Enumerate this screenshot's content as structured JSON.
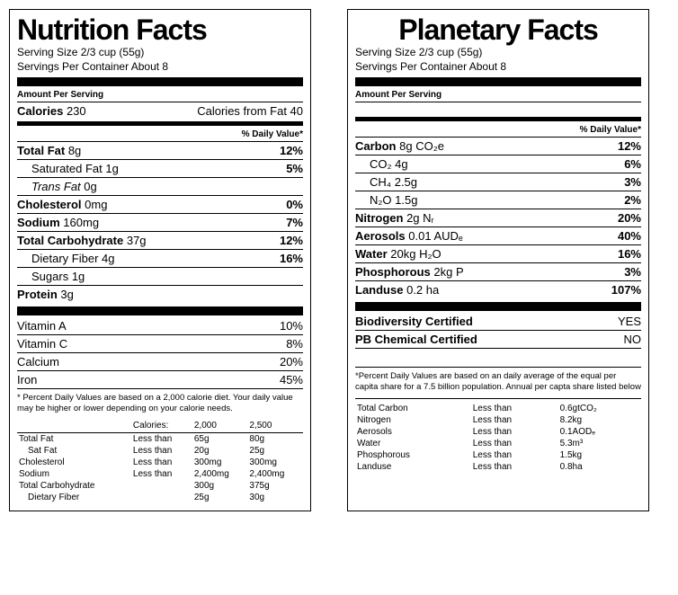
{
  "nutrition": {
    "title": "Nutrition Facts",
    "serving_size": "Serving Size 2/3 cup (55g)",
    "servings_per": "Servings Per Container About 8",
    "amount_per_serving": "Amount Per Serving",
    "calories_label": "Calories",
    "calories": "230",
    "cal_from_fat_label": "Calories from Fat 40",
    "daily_value": "% Daily Value*",
    "rows": [
      {
        "l": "Total Fat",
        "v": "8g",
        "p": "12%",
        "bold": true
      },
      {
        "l": "Saturated Fat",
        "v": "1g",
        "p": "5%",
        "indent": 1
      },
      {
        "l": "Trans Fat",
        "v": "0g",
        "p": "",
        "indent": 2,
        "italic": true
      },
      {
        "l": "Cholesterol",
        "v": "0mg",
        "p": "0%",
        "bold": true
      },
      {
        "l": "Sodium",
        "v": "160mg",
        "p": "7%",
        "bold": true
      },
      {
        "l": "Total Carbohydrate",
        "v": "37g",
        "p": "12%",
        "bold": true
      },
      {
        "l": "Dietary Fiber",
        "v": "4g",
        "p": "16%",
        "indent": 1
      },
      {
        "l": "Sugars",
        "v": "1g",
        "p": "",
        "indent": 1
      },
      {
        "l": "Protein",
        "v": "3g",
        "p": "",
        "bold": true
      }
    ],
    "vitamins": [
      {
        "l": "Vitamin A",
        "p": "10%"
      },
      {
        "l": "Vitamin C",
        "p": "8%"
      },
      {
        "l": "Calcium",
        "p": "20%"
      },
      {
        "l": "Iron",
        "p": "45%"
      }
    ],
    "footnote": "* Percent Daily Values are based on a 2,000 calorie diet. Your daily value may be higher or lower depending on your calorie needs.",
    "foot_head": [
      "",
      "Calories:",
      "2,000",
      "2,500"
    ],
    "foot_rows": [
      [
        "Total Fat",
        "Less than",
        "65g",
        "80g"
      ],
      [
        "Sat Fat",
        "Less than",
        "20g",
        "25g"
      ],
      [
        "Cholesterol",
        "Less than",
        "300mg",
        "300mg"
      ],
      [
        "Sodium",
        "Less than",
        "2,400mg",
        "2,400mg"
      ],
      [
        "Total Carbohydrate",
        "",
        "300g",
        "375g"
      ],
      [
        "Dietary Fiber",
        "",
        "25g",
        "30g"
      ]
    ]
  },
  "planetary": {
    "title": "Planetary Facts",
    "serving_size": "Serving Size 2/3 cup (55g)",
    "servings_per": "Servings Per Container About 8",
    "amount_per_serving": "Amount Per Serving",
    "daily_value": "% Daily Value*",
    "rows": [
      {
        "l": "Carbon",
        "v": "8g CO₂e",
        "p": "12%",
        "bold": true
      },
      {
        "l": "CO₂",
        "v": "4g",
        "p": "6%",
        "indent": 1
      },
      {
        "l": "CH₄",
        "v": "2.5g",
        "p": "3%",
        "indent": 1
      },
      {
        "l": "N₂O",
        "v": "1.5g",
        "p": "2%",
        "indent": 1
      },
      {
        "l": "Nitrogen",
        "v": "2g Nᵣ",
        "p": "20%",
        "bold": true
      },
      {
        "l": "Aerosols",
        "v": "0.01 AUDₑ",
        "p": "40%",
        "bold": true
      },
      {
        "l": "Water",
        "v": "20kg H₂O",
        "p": "16%",
        "bold": true
      },
      {
        "l": "Phosphorous",
        "v": "2kg P",
        "p": "3%",
        "bold": true
      },
      {
        "l": "Landuse",
        "v": "0.2 ha",
        "p": "107%",
        "bold": true
      }
    ],
    "certs": [
      {
        "l": "Biodiversity Certified",
        "v": "YES"
      },
      {
        "l": "PB Chemical Certified",
        "v": "NO"
      }
    ],
    "footnote": "*Percent Daily Values are based on an daily average of the equal per capita share for a 7.5 billion population. Annual per capta share listed below",
    "foot_rows": [
      [
        "Total Carbon",
        "Less than",
        "0.6gtCO₂"
      ],
      [
        "Nitrogen",
        "Less than",
        "8.2kg"
      ],
      [
        "Aerosols",
        "Less than",
        "0.1AODₑ"
      ],
      [
        "Water",
        "Less than",
        "5.3m³"
      ],
      [
        "Phosphorous",
        "Less than",
        "1.5kg"
      ],
      [
        "Landuse",
        "Less than",
        "0.8ha"
      ]
    ]
  }
}
